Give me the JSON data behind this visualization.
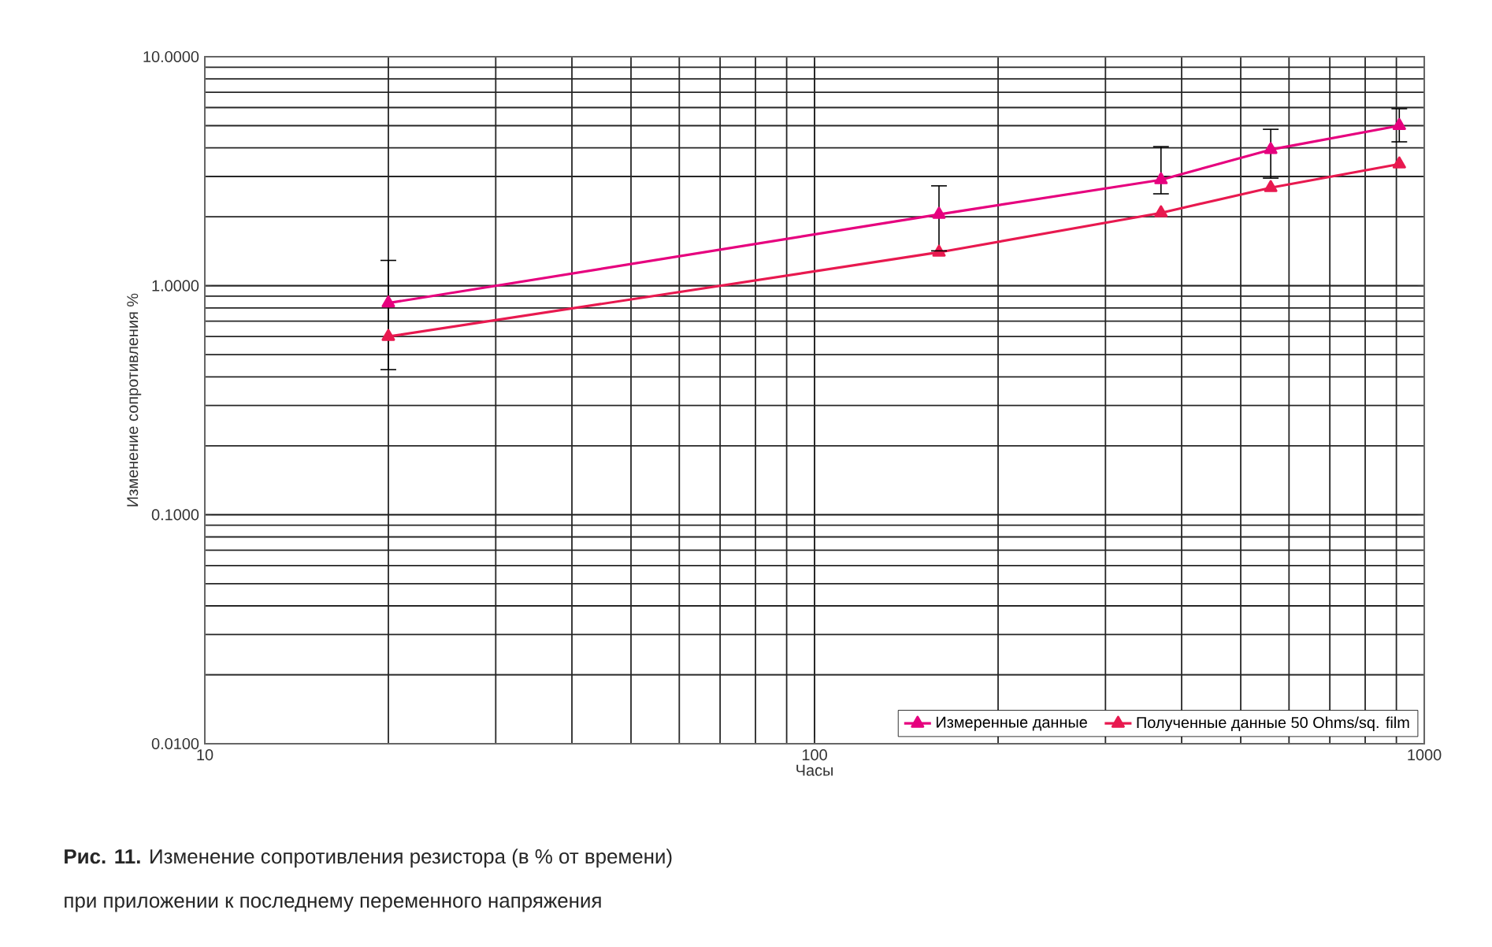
{
  "chart_data": {
    "type": "line",
    "xlabel": "Часы",
    "ylabel": "Изменение сопротивления %",
    "x": [
      20,
      160,
      370,
      560,
      910
    ],
    "series": [
      {
        "name": "Измеренные данные",
        "color": "#e6007e",
        "values": [
          0.84,
          2.05,
          2.9,
          3.93,
          5.0
        ],
        "errors": [
          [
            0.43,
            1.29
          ],
          [
            1.42,
            2.73
          ],
          [
            2.52,
            4.05
          ],
          [
            2.95,
            4.82
          ],
          [
            4.25,
            5.93
          ]
        ]
      },
      {
        "name": "Полученные данные 50 Ohms/sq. film",
        "color": "#e8194f",
        "values": [
          0.6,
          1.4,
          2.08,
          2.68,
          3.4
        ]
      }
    ],
    "log": "xy",
    "xlim": [
      10,
      1000
    ],
    "ylim": [
      0.01,
      10
    ],
    "xticks": [
      10,
      100,
      1000
    ],
    "yticks": [
      {
        "value": 0.01,
        "label": "0.0100"
      },
      {
        "value": 0.1,
        "label": "0.1000"
      },
      {
        "value": 1,
        "label": "1.0000"
      },
      {
        "value": 10,
        "label": "10.0000"
      }
    ],
    "grid": true,
    "legend": "bottom right",
    "marker": "triangle",
    "line_style": "solid",
    "annotations": [
      "**Рис. 11.** Изменение сопротивления резистора (в % от времени)",
      "при приложении к последнему переменного напряжения"
    ]
  }
}
